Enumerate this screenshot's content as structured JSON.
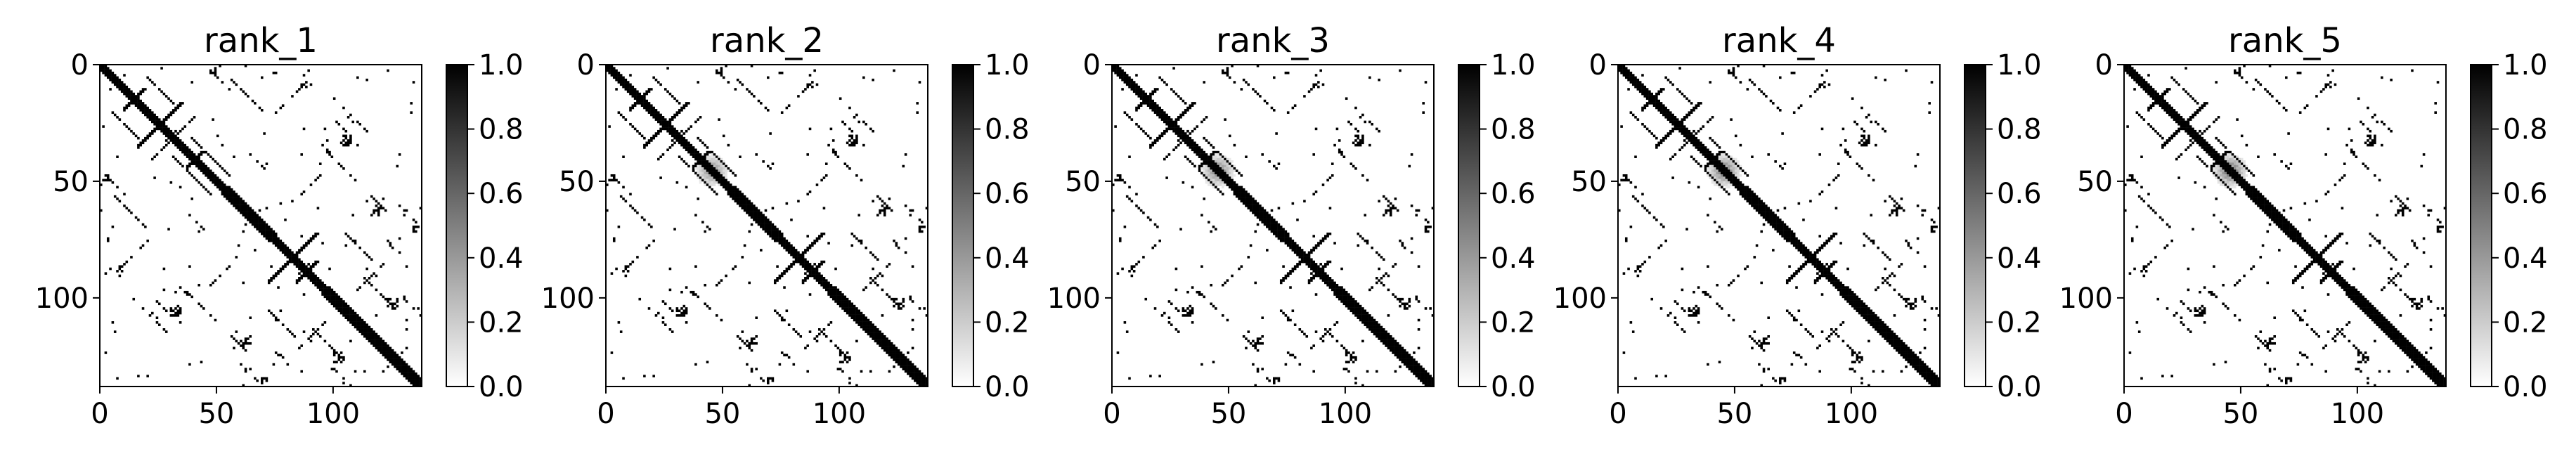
{
  "chart_data": [
    {
      "type": "heatmap",
      "title": "rank_1",
      "colormap": "gray_r",
      "matrix_size": 138,
      "xlim": [
        0,
        138
      ],
      "ylim": [
        138,
        0
      ],
      "x_ticks": [
        0,
        50,
        100
      ],
      "y_ticks": [
        0,
        50,
        100
      ],
      "colorbar": {
        "min": 0.0,
        "max": 1.0,
        "ticks": [
          "0.0",
          "0.2",
          "0.4",
          "0.6",
          "0.8",
          "1.0"
        ]
      },
      "blur_cluster": {
        "center": [
          45,
          45
        ],
        "peak": 0.0
      }
    },
    {
      "type": "heatmap",
      "title": "rank_2",
      "colormap": "gray_r",
      "matrix_size": 138,
      "xlim": [
        0,
        138
      ],
      "ylim": [
        138,
        0
      ],
      "x_ticks": [
        0,
        50,
        100
      ],
      "y_ticks": [
        0,
        50,
        100
      ],
      "colorbar": {
        "min": 0.0,
        "max": 1.0,
        "ticks": [
          "0.0",
          "0.2",
          "0.4",
          "0.6",
          "0.8",
          "1.0"
        ]
      },
      "blur_cluster": {
        "center": [
          45,
          45
        ],
        "peak": 0.45
      }
    },
    {
      "type": "heatmap",
      "title": "rank_3",
      "colormap": "gray_r",
      "matrix_size": 138,
      "xlim": [
        0,
        138
      ],
      "ylim": [
        138,
        0
      ],
      "x_ticks": [
        0,
        50,
        100
      ],
      "y_ticks": [
        0,
        50,
        100
      ],
      "colorbar": {
        "min": 0.0,
        "max": 1.0,
        "ticks": [
          "0.0",
          "0.2",
          "0.4",
          "0.6",
          "0.8",
          "1.0"
        ]
      },
      "blur_cluster": {
        "center": [
          45,
          45
        ],
        "peak": 0.5
      }
    },
    {
      "type": "heatmap",
      "title": "rank_4",
      "colormap": "gray_r",
      "matrix_size": 138,
      "xlim": [
        0,
        138
      ],
      "ylim": [
        138,
        0
      ],
      "x_ticks": [
        0,
        50,
        100
      ],
      "y_ticks": [
        0,
        50,
        100
      ],
      "colorbar": {
        "min": 0.0,
        "max": 1.0,
        "ticks": [
          "0.0",
          "0.2",
          "0.4",
          "0.6",
          "0.8",
          "1.0"
        ]
      },
      "blur_cluster": {
        "center": [
          45,
          45
        ],
        "peak": 0.55
      }
    },
    {
      "type": "heatmap",
      "title": "rank_5",
      "colormap": "gray_r",
      "matrix_size": 138,
      "xlim": [
        0,
        138
      ],
      "ylim": [
        138,
        0
      ],
      "x_ticks": [
        0,
        50,
        100
      ],
      "y_ticks": [
        0,
        50,
        100
      ],
      "colorbar": {
        "min": 0.0,
        "max": 1.0,
        "ticks": [
          "0.0",
          "0.2",
          "0.4",
          "0.6",
          "0.8",
          "1.0"
        ]
      },
      "blur_cluster": {
        "center": [
          45,
          45
        ],
        "peak": 0.6
      }
    }
  ]
}
